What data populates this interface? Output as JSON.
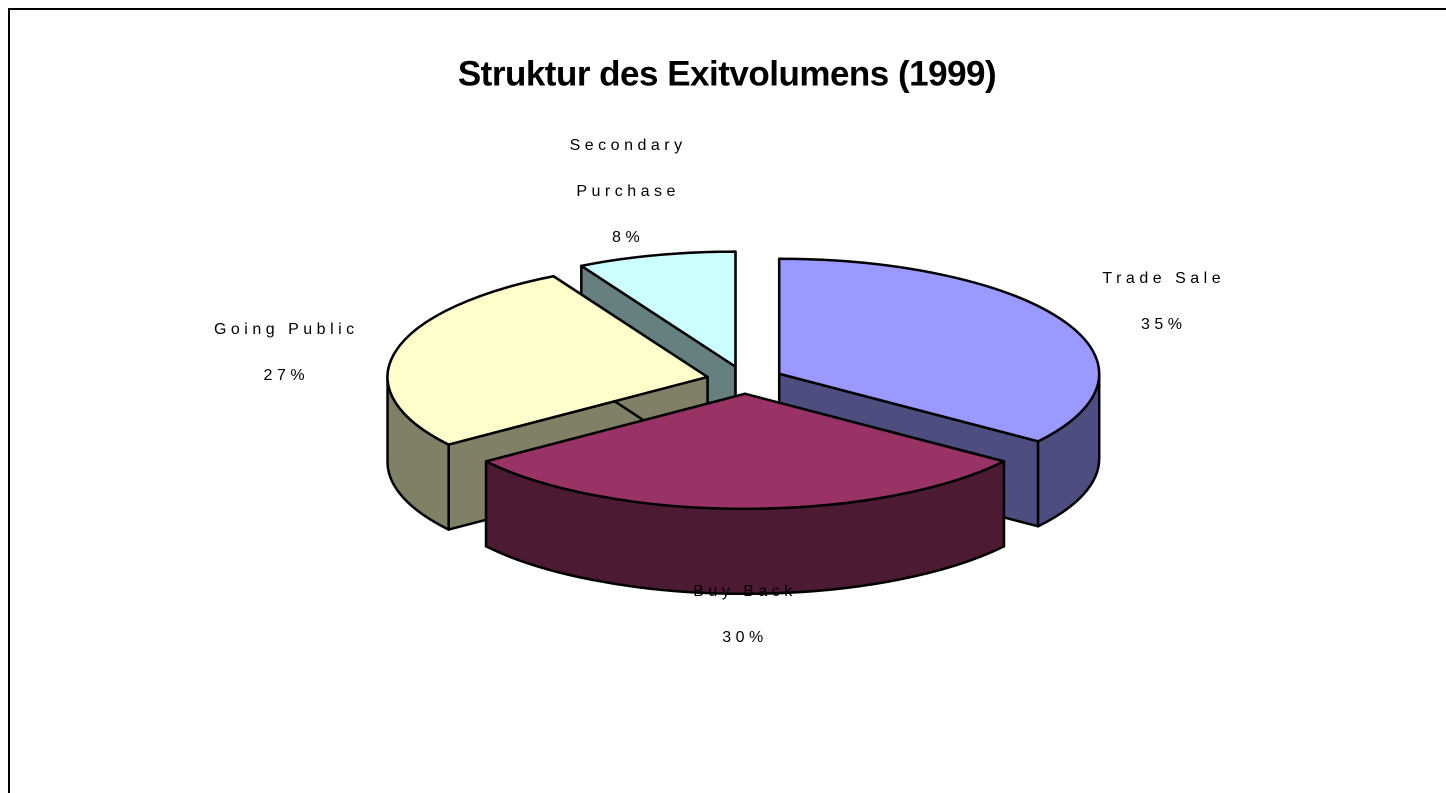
{
  "chart_data": {
    "type": "pie3d",
    "title": "Struktur des Exitvolumens (1999)",
    "categories": [
      "Trade Sale",
      "Buy Back",
      "Going Public",
      "Secondary Purchase"
    ],
    "values": [
      35,
      30,
      27,
      8
    ],
    "value_labels": [
      "35%",
      "30%",
      "27%",
      "8%"
    ],
    "colors": [
      "#9999ff",
      "#993366",
      "#ffffcc",
      "#ccffff"
    ]
  }
}
